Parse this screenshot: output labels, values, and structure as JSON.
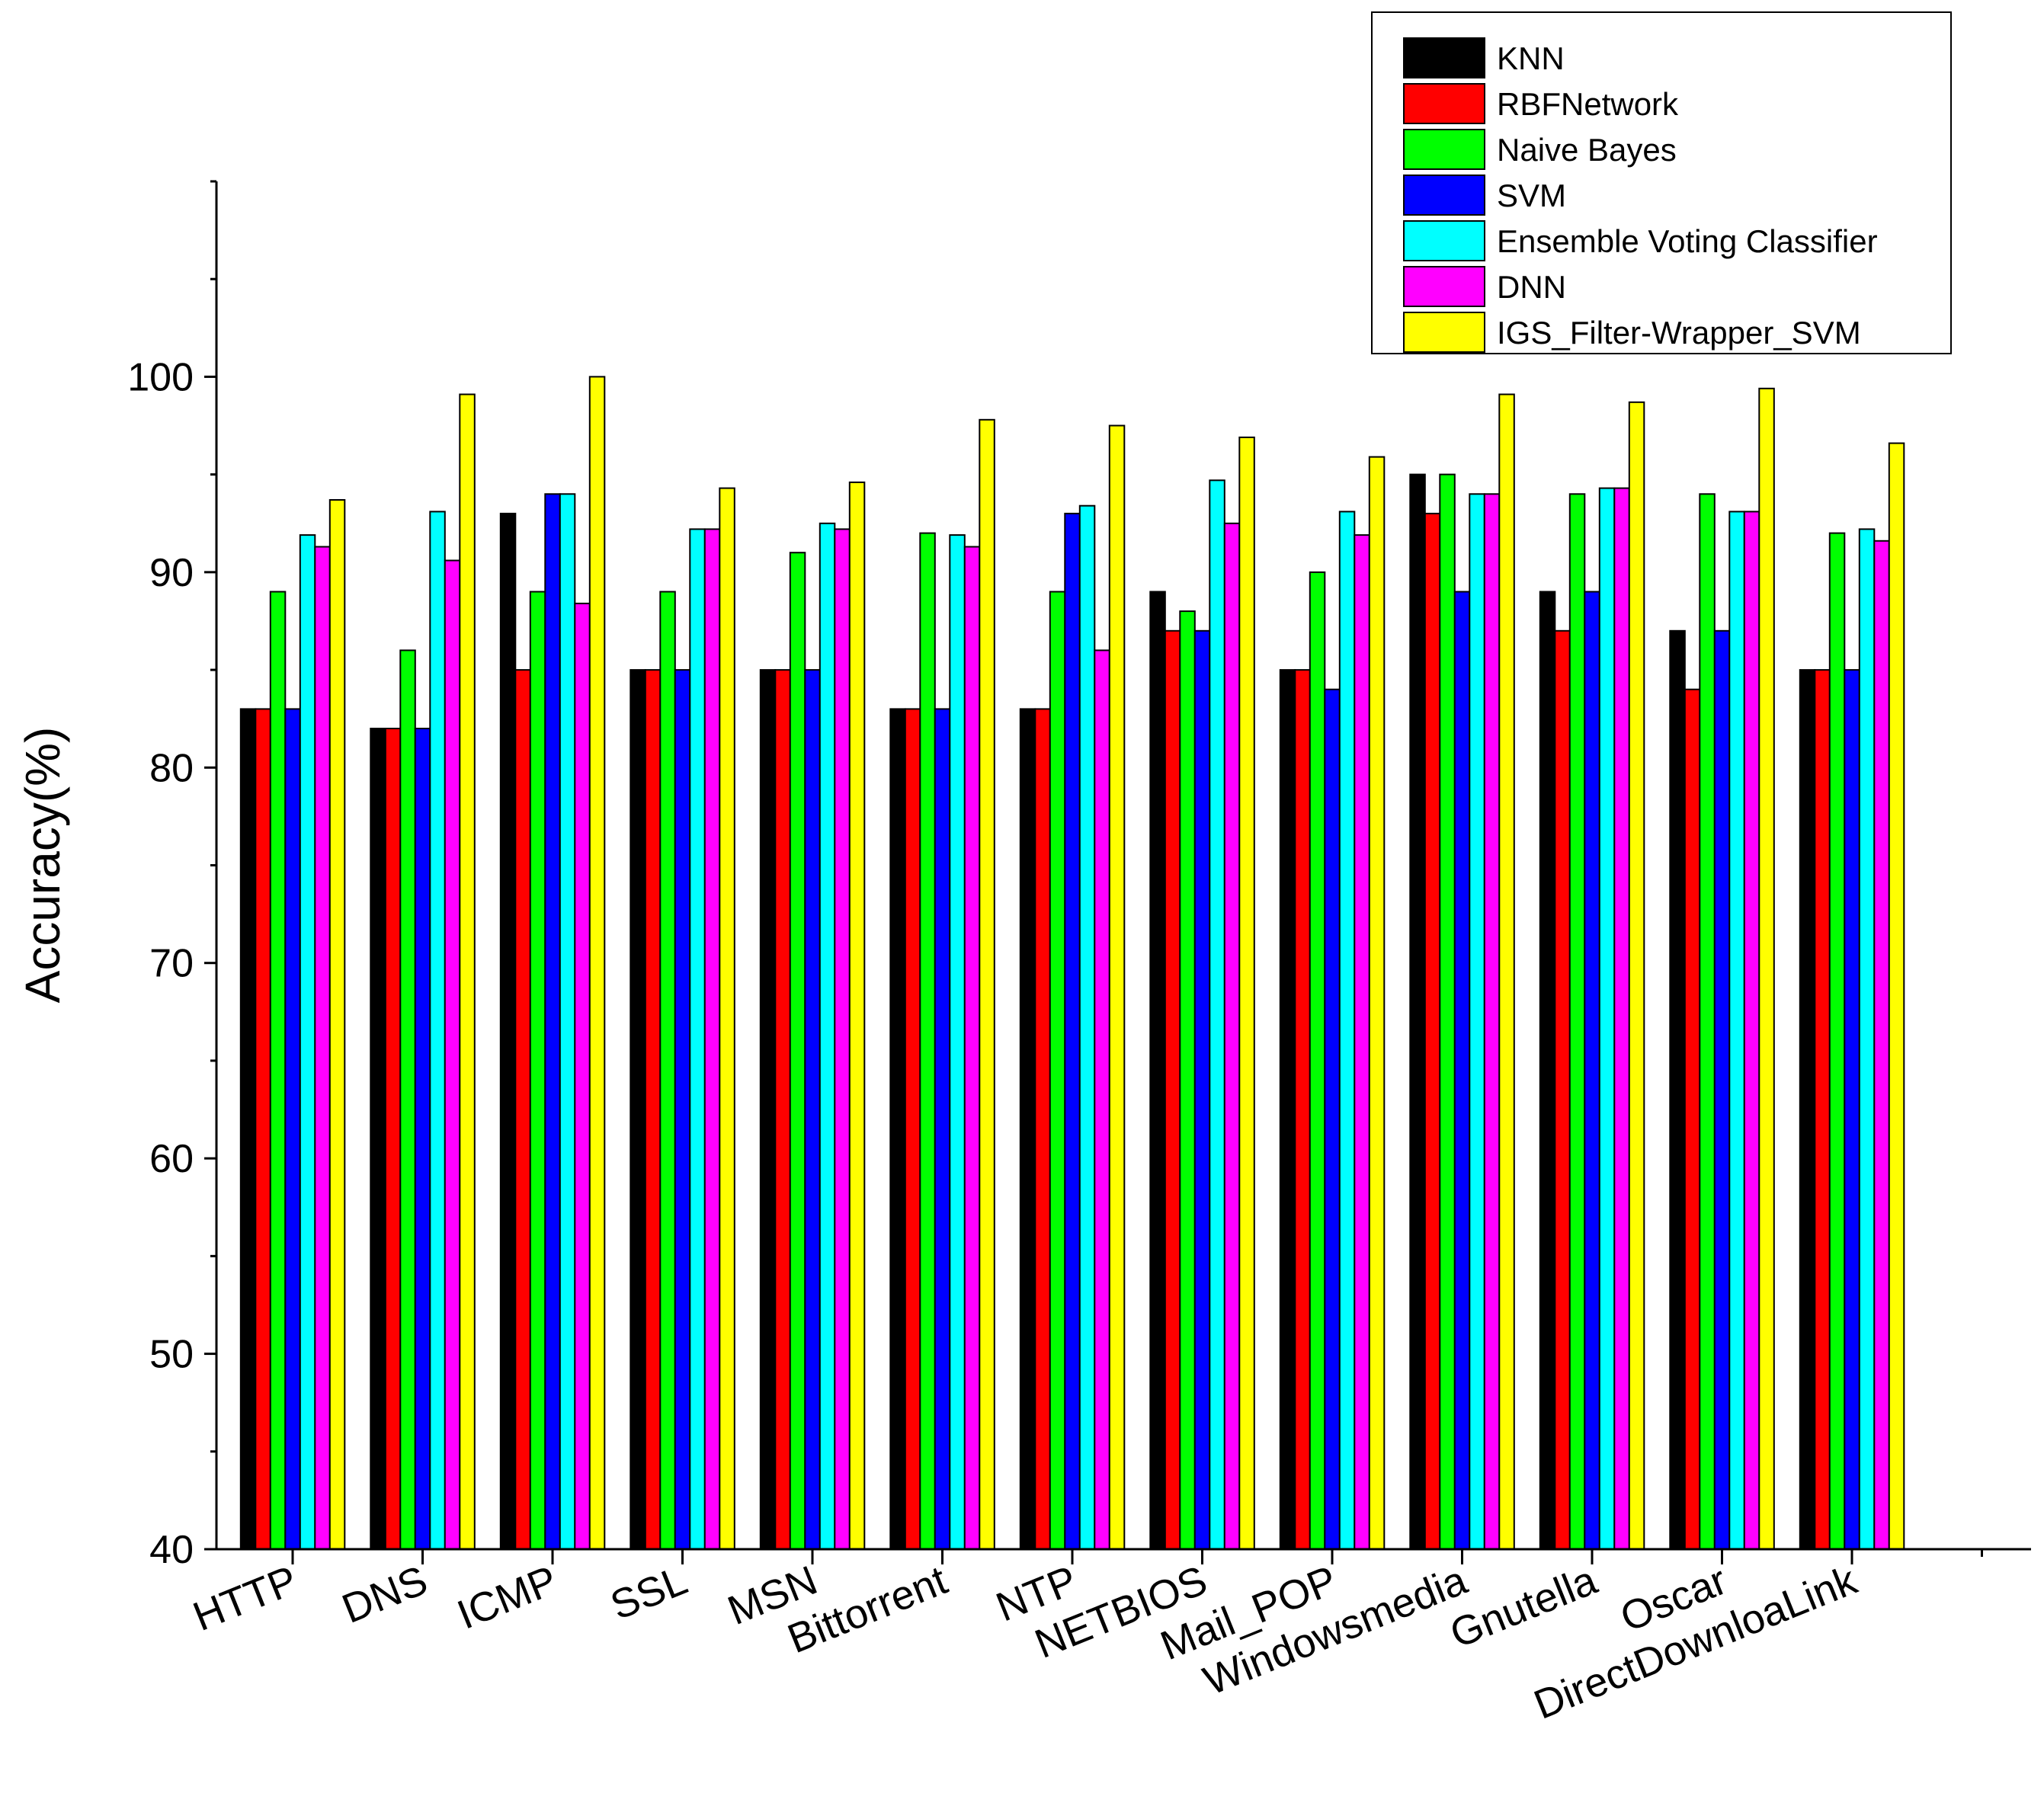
{
  "chart_data": {
    "type": "bar",
    "title": "",
    "xlabel": "",
    "ylabel": "Accuracy(%)",
    "ylim": [
      40,
      110
    ],
    "yticks": [
      40,
      50,
      60,
      70,
      80,
      90,
      100
    ],
    "grid": false,
    "legend_position": "top-right",
    "categories": [
      "HTTP",
      "DNS",
      "ICMP",
      "SSL",
      "MSN",
      "Bittorrent",
      "NTP",
      "NETBIOS",
      "Mail_POP",
      "Windowsmedia",
      "Gnutella",
      "Oscar",
      "DirectDownloaLink"
    ],
    "series": [
      {
        "name": "KNN",
        "color": "#000000",
        "values": [
          83,
          82,
          93,
          85,
          85,
          83,
          83,
          89,
          85,
          95,
          89,
          87,
          85
        ]
      },
      {
        "name": "RBFNetwork",
        "color": "#ff0000",
        "values": [
          83,
          82,
          85,
          85,
          85,
          83,
          83,
          87,
          85,
          93,
          87,
          84,
          85
        ]
      },
      {
        "name": "Naive Bayes",
        "color": "#00ff00",
        "values": [
          89,
          86,
          89,
          89,
          91,
          92,
          89,
          88,
          90,
          95,
          94,
          94,
          92
        ]
      },
      {
        "name": "SVM",
        "color": "#0000ff",
        "values": [
          83,
          82,
          94,
          85,
          85,
          83,
          93,
          87,
          84,
          89,
          89,
          87,
          85
        ]
      },
      {
        "name": "Ensemble Voting Classifier",
        "color": "#00ffff",
        "values": [
          91.9,
          93.1,
          94,
          92.2,
          92.5,
          91.9,
          93.4,
          94.7,
          93.1,
          94,
          94.3,
          93.1,
          92.2
        ]
      },
      {
        "name": "DNN",
        "color": "#ff00ff",
        "values": [
          91.3,
          90.6,
          88.4,
          92.2,
          92.2,
          91.3,
          86,
          92.5,
          91.9,
          94,
          94.3,
          93.1,
          91.6
        ]
      },
      {
        "name": "IGS_Filter-Wrapper_SVM",
        "color": "#ffff00",
        "values": [
          93.7,
          99.1,
          100,
          94.3,
          94.6,
          97.8,
          97.5,
          96.9,
          95.9,
          99.1,
          98.7,
          99.4,
          96.6
        ]
      }
    ]
  }
}
